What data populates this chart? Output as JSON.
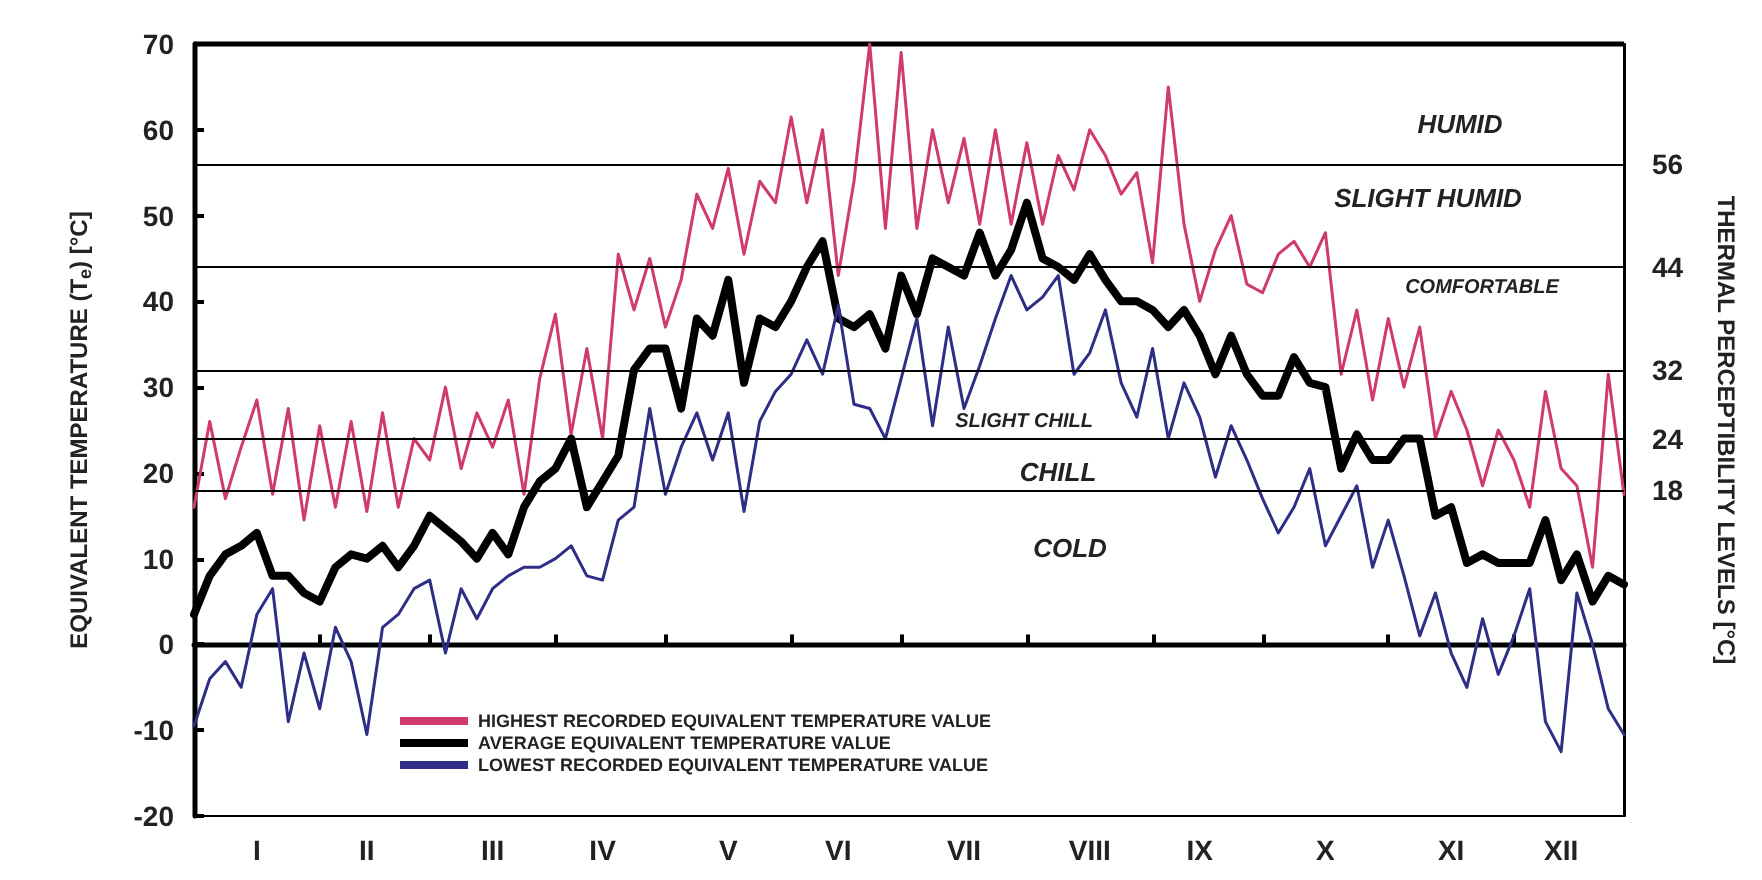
{
  "chart_data": {
    "type": "line",
    "ylabel": "EQUIVALENT TEMPERATURE (T$_{e}$) [°C]",
    "y2label": "THERMAL PERCEPTIBILITY LEVELS [°C]",
    "categories": [
      null,
      null,
      null,
      null,
      "I",
      null,
      null,
      null,
      null,
      null,
      null,
      "II",
      null,
      null,
      null,
      null,
      null,
      null,
      null,
      "III",
      null,
      null,
      null,
      null,
      null,
      null,
      "IV",
      null,
      null,
      null,
      null,
      null,
      null,
      null,
      "V",
      null,
      null,
      null,
      null,
      null,
      null,
      "VI",
      null,
      null,
      null,
      null,
      null,
      null,
      null,
      "VII",
      null,
      null,
      null,
      null,
      null,
      null,
      null,
      "VIII",
      null,
      null,
      null,
      null,
      null,
      null,
      "IX",
      null,
      null,
      null,
      null,
      null,
      null,
      null,
      "X",
      null,
      null,
      null,
      null,
      null,
      null,
      null,
      "XI",
      null,
      null,
      null,
      null,
      null,
      null,
      "XII",
      null,
      null,
      null,
      null
    ],
    "ylim": [
      -20,
      70
    ],
    "yticks": [
      -20,
      -10,
      0,
      10,
      20,
      30,
      40,
      50,
      60,
      70
    ],
    "y2lim": [
      -20,
      70
    ],
    "y2ticks": [
      18,
      24,
      32,
      44,
      56
    ],
    "grid": false,
    "legend": "bottom left",
    "marker": "none",
    "line_style": "solid",
    "ref_lines": [
      {
        "axis": "y2",
        "value": 18,
        "label": null,
        "color": "#000000"
      },
      {
        "axis": "y2",
        "value": 24,
        "label": null,
        "color": "#000000"
      },
      {
        "axis": "y2",
        "value": 32,
        "label": null,
        "color": "#000000"
      },
      {
        "axis": "y2",
        "value": 44,
        "label": null,
        "color": "#000000"
      },
      {
        "axis": "y2",
        "value": 56,
        "label": null,
        "color": "#000000"
      }
    ],
    "annotations": [
      "HUMID",
      "SLIGHT HUMID",
      "COMFORTABLE",
      "SLIGHT CHILL",
      "CHILL",
      "COLD"
    ],
    "series": [
      {
        "name": "HIGHEST RECORDED EQUIVALENT TEMPERATURE VALUE",
        "color": "#d03a6c",
        "values": [
          16,
          26,
          17,
          23,
          28.5,
          17.5,
          27.5,
          14.5,
          25.5,
          16,
          26,
          15.5,
          27,
          16,
          24,
          21.5,
          30,
          20.5,
          27,
          23,
          28.5,
          17.5,
          31,
          38.5,
          24.5,
          34.5,
          24,
          45.5,
          39,
          45,
          37,
          42.5,
          52.5,
          48.5,
          55.5,
          45.5,
          54,
          51.5,
          61.5,
          51.5,
          60,
          43,
          54,
          70,
          48.5,
          69,
          48.5,
          60,
          51.5,
          59,
          49,
          60,
          49,
          58.5,
          49,
          57,
          53,
          60,
          57,
          52.5,
          55,
          44.5,
          65,
          49,
          40,
          46,
          50,
          42,
          41,
          45.5,
          47,
          44,
          48,
          31.5,
          39,
          28.5,
          38,
          30,
          37,
          24,
          29.5,
          25,
          18.5,
          25,
          21.5,
          16,
          29.5,
          20.5,
          18.5,
          9,
          31.5,
          17.5
        ]
      },
      {
        "name": "AVERAGE EQUIVALENT TEMPERATURE VALUE",
        "color": "#000000",
        "values": [
          3.5,
          8,
          10.5,
          11.5,
          13,
          8,
          8,
          6,
          5,
          9,
          10.5,
          10,
          11.5,
          9,
          11.5,
          15,
          13.5,
          12,
          10,
          13,
          10.5,
          16,
          19,
          20.5,
          24,
          16,
          19,
          22,
          32,
          34.5,
          34.5,
          27.5,
          38,
          36,
          42.5,
          30.5,
          38,
          37,
          40,
          44,
          47,
          38,
          37,
          38.5,
          34.5,
          43,
          38.5,
          45,
          44,
          43,
          48,
          43,
          46,
          51.5,
          45,
          44,
          42.5,
          45.5,
          42.5,
          40,
          40,
          39,
          37,
          39,
          36,
          31.5,
          36,
          31.5,
          29,
          29,
          33.5,
          30.5,
          30,
          20.5,
          24.5,
          21.5,
          21.5,
          24,
          24,
          15,
          16,
          9.5,
          10.5,
          9.5,
          9.5,
          9.5,
          14.5,
          7.5,
          10.5,
          5,
          8,
          7
        ]
      },
      {
        "name": "LOWEST RECORDED EQUIVALENT TEMPERATURE VALUE",
        "color": "#2e2e86",
        "values": [
          -9.5,
          -4,
          -2,
          -5,
          3.5,
          6.5,
          -9,
          -1,
          -7.5,
          2,
          -2,
          -10.5,
          2,
          3.5,
          6.5,
          7.5,
          -1,
          6.5,
          3,
          6.5,
          8,
          9,
          9,
          10,
          11.5,
          8,
          7.5,
          14.5,
          16,
          27.5,
          17.5,
          23,
          27,
          21.5,
          27,
          15.5,
          26,
          29.5,
          31.5,
          35.5,
          31.5,
          39.5,
          28,
          27.5,
          24,
          31,
          38,
          25.5,
          37,
          27.5,
          32.5,
          38,
          43,
          39,
          40.5,
          43,
          31.5,
          34,
          39,
          30.5,
          26.5,
          34.5,
          24,
          30.5,
          26.5,
          19.5,
          25.5,
          21.5,
          17,
          13,
          16,
          20.5,
          11.5,
          15,
          18.5,
          9,
          14.5,
          8,
          1,
          6,
          -1,
          -5,
          3,
          -3.5,
          1,
          6.5,
          -9,
          -12.5,
          6,
          0,
          -7.5,
          -10.5
        ]
      }
    ]
  }
}
